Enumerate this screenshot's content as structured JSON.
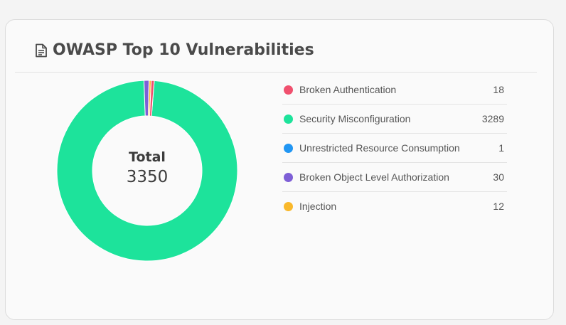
{
  "card": {
    "title": "OWASP Top 10 Vulnerabilities",
    "title_icon": "document-icon"
  },
  "chart_data": {
    "type": "pie",
    "variant": "donut",
    "title": "OWASP Top 10 Vulnerabilities",
    "center_label": "Total",
    "total": "3350",
    "legend_position": "right",
    "series": [
      {
        "name": "Broken Authentication",
        "value": 18,
        "color": "#f0506e"
      },
      {
        "name": "Security Misconfiguration",
        "value": 3289,
        "color": "#1de39b"
      },
      {
        "name": "Unrestricted Resource Consumption",
        "value": 1,
        "color": "#2196f3"
      },
      {
        "name": "Broken Object Level Authorization",
        "value": 30,
        "color": "#7e5fd6"
      },
      {
        "name": "Injection",
        "value": 12,
        "color": "#f9b82b"
      }
    ]
  }
}
